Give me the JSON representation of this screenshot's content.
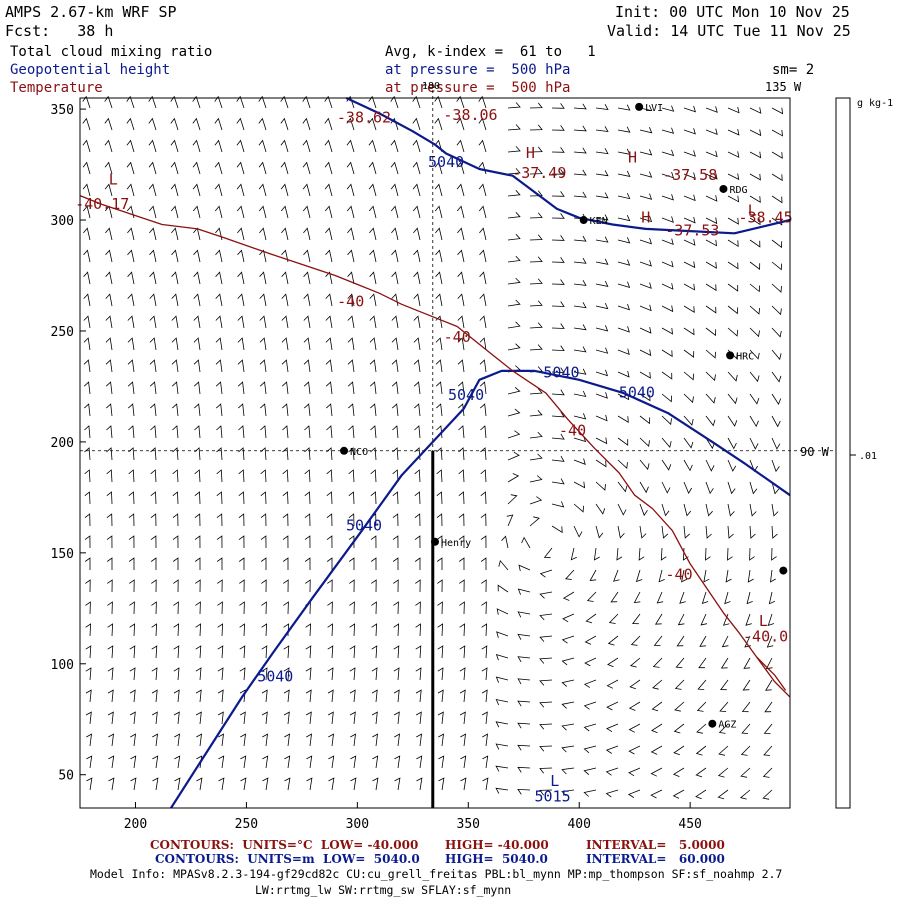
{
  "header": {
    "model": "AMPS 2.67-km WRF SP",
    "forecast": "Fcst:   38 h",
    "init": "Init: 00 UTC Mon 10 Nov 25",
    "valid": "Valid: 14 UTC Tue 11 Nov 25",
    "field_cloud": "Total cloud mixing ratio",
    "field_height": "Geopotential height",
    "field_temp": "Temperature",
    "avg_line": "Avg, k-index =  61 to   1",
    "pressure_height": "at pressure =  500 hPa",
    "pressure_temp": "at pressure =  500 hPa",
    "smoothing": "sm= 2",
    "lon_top": "135 W",
    "lon_top_partial": "180",
    "lon_right": "90 W"
  },
  "colorbar": {
    "units": "g kg-1",
    "tick_label": ".01",
    "tick_value": 0.01
  },
  "colors": {
    "height": "#0b1a8c",
    "temperature": "#8b1010",
    "barbs": "#000000"
  },
  "chart_data": {
    "type": "contour-map",
    "x_ticks": [
      200,
      250,
      300,
      350,
      400,
      450
    ],
    "y_ticks": [
      50,
      100,
      150,
      200,
      250,
      300,
      350
    ],
    "xlim": [
      175,
      495
    ],
    "ylim": [
      35,
      355
    ],
    "crosshair": {
      "x": 334,
      "y": 196
    },
    "cross_section_line": {
      "x": 334,
      "y_from": 35,
      "y_to": 196
    },
    "height_contours": [
      {
        "label": "5040",
        "points": [
          [
            216,
            35
          ],
          [
            232,
            60
          ],
          [
            248,
            85
          ],
          [
            262,
            105
          ],
          [
            280,
            130
          ],
          [
            302,
            160
          ],
          [
            320,
            185
          ],
          [
            334,
            200
          ],
          [
            348,
            215
          ],
          [
            355,
            228
          ],
          [
            365,
            232
          ],
          [
            380,
            232
          ],
          [
            400,
            228
          ],
          [
            420,
            222
          ],
          [
            440,
            213
          ],
          [
            460,
            200
          ],
          [
            475,
            190
          ],
          [
            495,
            176
          ]
        ]
      },
      {
        "label": "5040",
        "points": [
          [
            295,
            355
          ],
          [
            310,
            348
          ],
          [
            325,
            340
          ],
          [
            335,
            334
          ],
          [
            340,
            330
          ],
          [
            355,
            323
          ],
          [
            370,
            320
          ],
          [
            390,
            305
          ],
          [
            400,
            301
          ],
          [
            415,
            298
          ],
          [
            430,
            296
          ],
          [
            450,
            295
          ],
          [
            470,
            294
          ],
          [
            495,
            300
          ]
        ]
      }
    ],
    "height_labels": [
      {
        "text": "5040",
        "x": 263,
        "y": 92
      },
      {
        "text": "5040",
        "x": 303,
        "y": 160
      },
      {
        "text": "5040",
        "x": 349,
        "y": 219
      },
      {
        "text": "5040",
        "x": 392,
        "y": 229
      },
      {
        "text": "5040",
        "x": 426,
        "y": 220
      },
      {
        "text": "5040",
        "x": 340,
        "y": 324
      },
      {
        "text": "5015",
        "x": 388,
        "y": 38
      }
    ],
    "temp_contours": [
      {
        "label": "-40",
        "points": [
          [
            175,
            311
          ],
          [
            185,
            307
          ],
          [
            200,
            302
          ],
          [
            212,
            298
          ],
          [
            228,
            296
          ],
          [
            240,
            292
          ],
          [
            260,
            285
          ],
          [
            275,
            280
          ],
          [
            290,
            275
          ],
          [
            300,
            271
          ],
          [
            310,
            267
          ],
          [
            320,
            262
          ],
          [
            330,
            258
          ],
          [
            345,
            252
          ],
          [
            360,
            240
          ],
          [
            370,
            232
          ],
          [
            385,
            222
          ],
          [
            395,
            210
          ],
          [
            407,
            197
          ],
          [
            418,
            186
          ],
          [
            425,
            176
          ],
          [
            433,
            170
          ],
          [
            442,
            160
          ],
          [
            450,
            145
          ],
          [
            465,
            123
          ],
          [
            472,
            114
          ],
          [
            480,
            103
          ],
          [
            488,
            92
          ],
          [
            495,
            85
          ]
        ]
      },
      {
        "label": "",
        "points": [
          [
            480,
            103
          ],
          [
            488,
            95
          ],
          [
            493,
            88
          ]
        ]
      }
    ],
    "temp_labels": [
      {
        "text": "-38.62",
        "x": 303,
        "y": 344
      },
      {
        "text": "-38.06",
        "x": 351,
        "y": 345
      },
      {
        "text": "-37.49",
        "x": 382,
        "y": 319
      },
      {
        "text": "-37.58",
        "x": 450,
        "y": 318
      },
      {
        "text": "-37.53",
        "x": 451,
        "y": 293
      },
      {
        "text": "-38.45",
        "x": 484,
        "y": 299
      },
      {
        "text": "-40.17",
        "x": 185,
        "y": 305
      },
      {
        "text": "-40",
        "x": 297,
        "y": 261
      },
      {
        "text": "-40",
        "x": 345,
        "y": 245
      },
      {
        "text": "-40",
        "x": 397,
        "y": 203
      },
      {
        "text": "-40",
        "x": 445,
        "y": 138
      },
      {
        "text": "-40.0",
        "x": 484,
        "y": 110
      }
    ],
    "pressure_centers": [
      {
        "type": "H",
        "color": "temp",
        "x": 378,
        "y": 328
      },
      {
        "type": "H",
        "color": "temp",
        "x": 424,
        "y": 326
      },
      {
        "type": "H",
        "color": "temp",
        "x": 430,
        "y": 299
      },
      {
        "type": "L",
        "color": "temp",
        "x": 478,
        "y": 302
      },
      {
        "type": "L",
        "color": "temp",
        "x": 190,
        "y": 316
      },
      {
        "type": "L",
        "color": "temp",
        "x": 483,
        "y": 117
      },
      {
        "type": "L",
        "color": "height",
        "x": 389,
        "y": 45
      }
    ],
    "stations": [
      {
        "name": "NCO",
        "x": 294,
        "y": 196
      },
      {
        "name": "Henry",
        "x": 335,
        "y": 155
      },
      {
        "name": "KEN",
        "x": 402,
        "y": 300
      },
      {
        "name": "RDG",
        "x": 465,
        "y": 314
      },
      {
        "name": "HRC",
        "x": 468,
        "y": 239
      },
      {
        "name": "AGZ",
        "x": 460,
        "y": 73
      },
      {
        "name": "LVI",
        "x": 427,
        "y": 351
      },
      {
        "name": "",
        "x": 492,
        "y": 142
      }
    ]
  },
  "footer": {
    "temp_contours": "CONTOURS:  UNITS=°C  LOW= -40.000",
    "temp_high": "HIGH= -40.000",
    "temp_interval": "INTERVAL=   5.0000",
    "height_contours": "CONTOURS:  UNITS=m  LOW=  5040.0",
    "height_high": "HIGH=  5040.0",
    "height_interval": "INTERVAL=   60.000",
    "model_info": "Model Info: MPASv8.2.3-194-gf29cd82c CU:cu_grell_freitas PBL:bl_mynn MP:mp_thompson SF:sf_noahmp 2.7",
    "model_info2": "LW:rrtmg_lw SW:rrtmg_sw SFLAY:sf_mynn"
  }
}
